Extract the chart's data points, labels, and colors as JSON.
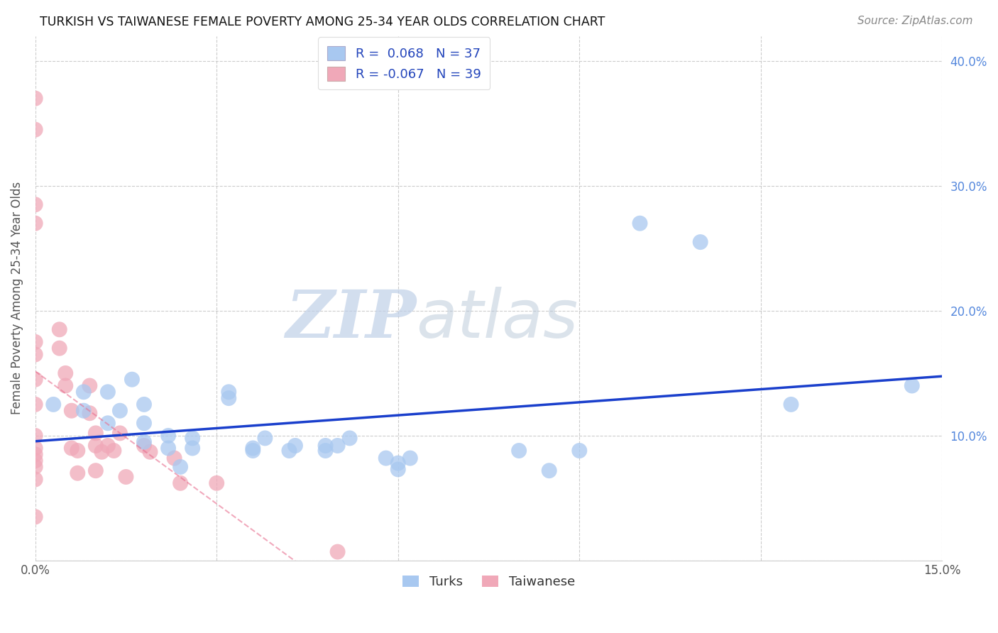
{
  "title": "TURKISH VS TAIWANESE FEMALE POVERTY AMONG 25-34 YEAR OLDS CORRELATION CHART",
  "source": "Source: ZipAtlas.com",
  "ylabel": "Female Poverty Among 25-34 Year Olds",
  "xlim": [
    0.0,
    0.15
  ],
  "ylim": [
    0.0,
    0.42
  ],
  "background_color": "#ffffff",
  "grid_color": "#cccccc",
  "turks_color": "#a8c8f0",
  "taiwanese_color": "#f0a8b8",
  "turks_line_color": "#1a3fcc",
  "taiwanese_line_color": "#e87090",
  "turks_R": 0.068,
  "turks_N": 37,
  "taiwanese_R": -0.067,
  "taiwanese_N": 39,
  "turks_x": [
    0.003,
    0.008,
    0.008,
    0.012,
    0.012,
    0.014,
    0.016,
    0.018,
    0.018,
    0.018,
    0.022,
    0.022,
    0.024,
    0.026,
    0.026,
    0.032,
    0.032,
    0.036,
    0.036,
    0.038,
    0.042,
    0.043,
    0.048,
    0.048,
    0.05,
    0.052,
    0.058,
    0.06,
    0.06,
    0.062,
    0.08,
    0.085,
    0.09,
    0.1,
    0.11,
    0.125,
    0.145
  ],
  "turks_y": [
    0.125,
    0.12,
    0.135,
    0.135,
    0.11,
    0.12,
    0.145,
    0.11,
    0.095,
    0.125,
    0.1,
    0.09,
    0.075,
    0.09,
    0.098,
    0.13,
    0.135,
    0.09,
    0.088,
    0.098,
    0.088,
    0.092,
    0.088,
    0.092,
    0.092,
    0.098,
    0.082,
    0.073,
    0.078,
    0.082,
    0.088,
    0.072,
    0.088,
    0.27,
    0.255,
    0.125,
    0.14
  ],
  "taiwanese_x": [
    0.0,
    0.0,
    0.0,
    0.0,
    0.0,
    0.0,
    0.0,
    0.0,
    0.0,
    0.0,
    0.0,
    0.0,
    0.0,
    0.0,
    0.0,
    0.004,
    0.004,
    0.005,
    0.005,
    0.006,
    0.006,
    0.007,
    0.007,
    0.009,
    0.009,
    0.01,
    0.01,
    0.01,
    0.011,
    0.012,
    0.013,
    0.014,
    0.015,
    0.018,
    0.019,
    0.023,
    0.024,
    0.03,
    0.05
  ],
  "taiwanese_y": [
    0.37,
    0.345,
    0.285,
    0.27,
    0.175,
    0.165,
    0.145,
    0.125,
    0.1,
    0.09,
    0.085,
    0.08,
    0.075,
    0.065,
    0.035,
    0.185,
    0.17,
    0.15,
    0.14,
    0.12,
    0.09,
    0.088,
    0.07,
    0.14,
    0.118,
    0.102,
    0.092,
    0.072,
    0.087,
    0.092,
    0.088,
    0.102,
    0.067,
    0.092,
    0.087,
    0.082,
    0.062,
    0.062,
    0.007
  ],
  "watermark_zip": "ZIP",
  "watermark_atlas": "atlas",
  "legend_labels": [
    "Turks",
    "Taiwanese"
  ]
}
